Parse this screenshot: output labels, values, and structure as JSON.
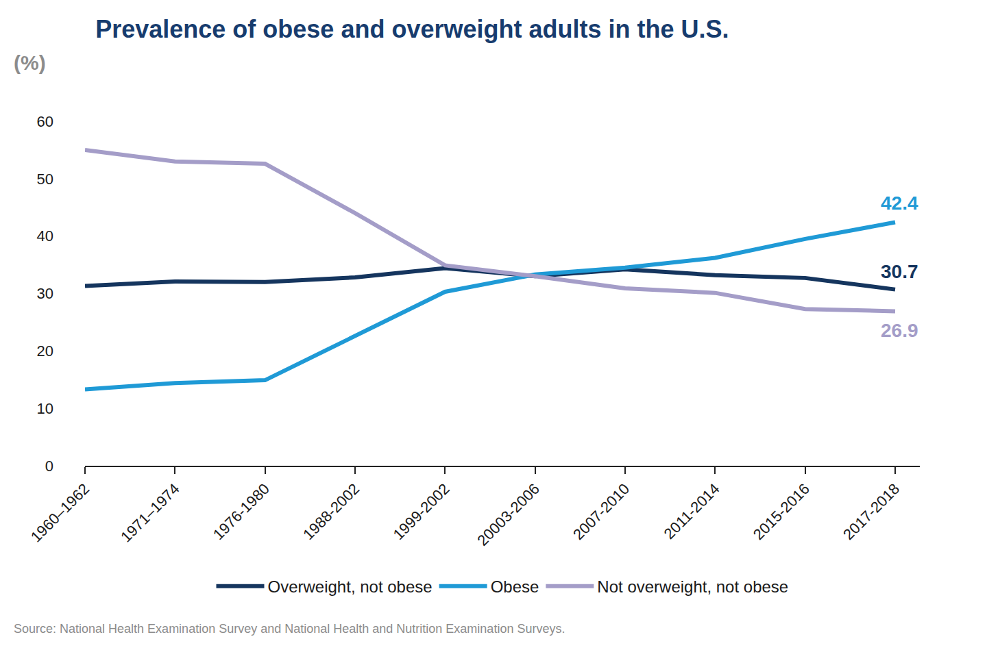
{
  "chart_data": {
    "type": "line",
    "title": "Prevalence of obese and overweight adults in the U.S.",
    "subtitle": "(%)",
    "source": "Source: National Health Examination Survey and National Health and Nutrition Examination Surveys.",
    "categories": [
      "1960–1962",
      "1971–1974",
      "1976-1980",
      "1988-2002",
      "1999-2002",
      "20003-2006",
      "2007-2010",
      "2011-2014",
      "2015-2016",
      "2017-2018"
    ],
    "series": [
      {
        "name": "Overweight, not obese",
        "color": "#15355e",
        "values": [
          31.3,
          32.1,
          32.0,
          32.8,
          34.4,
          33.0,
          34.2,
          33.2,
          32.7,
          30.7
        ],
        "value_labels": [
          null,
          null,
          null,
          null,
          null,
          null,
          null,
          null,
          null,
          "30.7"
        ]
      },
      {
        "name": "Obese",
        "color": "#1f9ad6",
        "values": [
          13.3,
          14.4,
          14.9,
          22.6,
          30.3,
          33.3,
          34.5,
          36.2,
          39.5,
          42.4
        ],
        "value_labels": [
          null,
          null,
          null,
          null,
          null,
          null,
          null,
          null,
          null,
          "42.4"
        ]
      },
      {
        "name": "Not overweight, not obese",
        "color": "#a49dc8",
        "values": [
          55.0,
          53.0,
          52.6,
          44.0,
          34.9,
          33.0,
          30.9,
          30.1,
          27.3,
          26.9
        ],
        "value_labels": [
          null,
          null,
          null,
          null,
          null,
          null,
          null,
          null,
          null,
          "26.9"
        ]
      }
    ],
    "ylim": [
      0,
      60
    ],
    "yticks": [
      0,
      10,
      20,
      30,
      40,
      50,
      60
    ],
    "grid": false,
    "legend": "bottom"
  }
}
